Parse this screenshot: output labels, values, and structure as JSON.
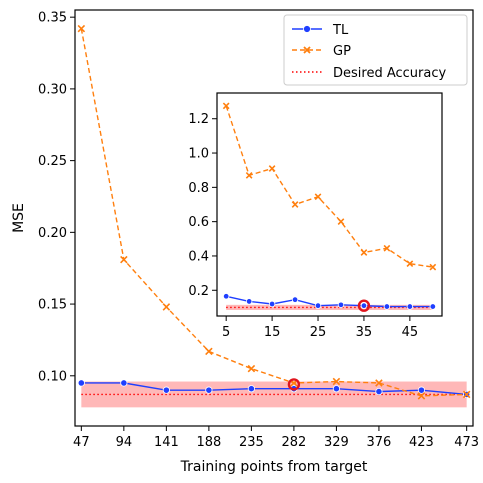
{
  "chart_data": [
    {
      "panel": "main",
      "type": "line",
      "xlabel": "Training points from target",
      "ylabel": "MSE",
      "x": [
        47,
        94,
        141,
        188,
        235,
        282,
        329,
        376,
        423,
        473
      ],
      "xlim": [
        40,
        480
      ],
      "ylim": [
        0.065,
        0.355
      ],
      "yticks": [
        "0.10",
        "0.15",
        "0.20",
        "0.25",
        "0.30",
        "0.35"
      ],
      "series": [
        {
          "name": "TL",
          "color": "#1f3fff",
          "style": "solid",
          "marker": "circle",
          "values": [
            0.095,
            0.095,
            0.09,
            0.09,
            0.091,
            0.091,
            0.091,
            0.089,
            0.09,
            0.087
          ]
        },
        {
          "name": "GP",
          "color": "#ff7f0e",
          "style": "dashed",
          "marker": "x",
          "values": [
            0.342,
            0.181,
            0.148,
            0.117,
            0.105,
            0.095,
            0.096,
            0.095,
            0.086,
            0.087
          ]
        }
      ],
      "desired_accuracy": {
        "name": "Desired Accuracy",
        "color": "#ff0000",
        "value": 0.087,
        "band": [
          0.078,
          0.096
        ]
      },
      "highlight": {
        "x": 282,
        "y": 0.094
      },
      "legend": "top-right"
    },
    {
      "panel": "inset",
      "type": "line",
      "x": [
        5,
        10,
        15,
        20,
        25,
        30,
        35,
        40,
        45,
        50
      ],
      "xlim": [
        3,
        52
      ],
      "ylim": [
        0.05,
        1.35
      ],
      "xticks": [
        "5",
        "15",
        "25",
        "35",
        "45"
      ],
      "yticks": [
        "0.2",
        "0.4",
        "0.6",
        "0.8",
        "1.0",
        "1.2"
      ],
      "series": [
        {
          "name": "TL",
          "color": "#1f3fff",
          "style": "solid",
          "marker": "circle",
          "values": [
            0.165,
            0.135,
            0.12,
            0.145,
            0.11,
            0.115,
            0.11,
            0.105,
            0.105,
            0.105
          ]
        },
        {
          "name": "GP",
          "color": "#ff7f0e",
          "style": "dashed",
          "marker": "x",
          "values": [
            1.275,
            0.87,
            0.91,
            0.7,
            0.745,
            0.6,
            0.42,
            0.445,
            0.355,
            0.335
          ]
        }
      ],
      "desired_accuracy": {
        "value": 0.1,
        "band": [
          0.085,
          0.115
        ]
      },
      "highlight": {
        "x": 35,
        "y": 0.11
      }
    }
  ]
}
